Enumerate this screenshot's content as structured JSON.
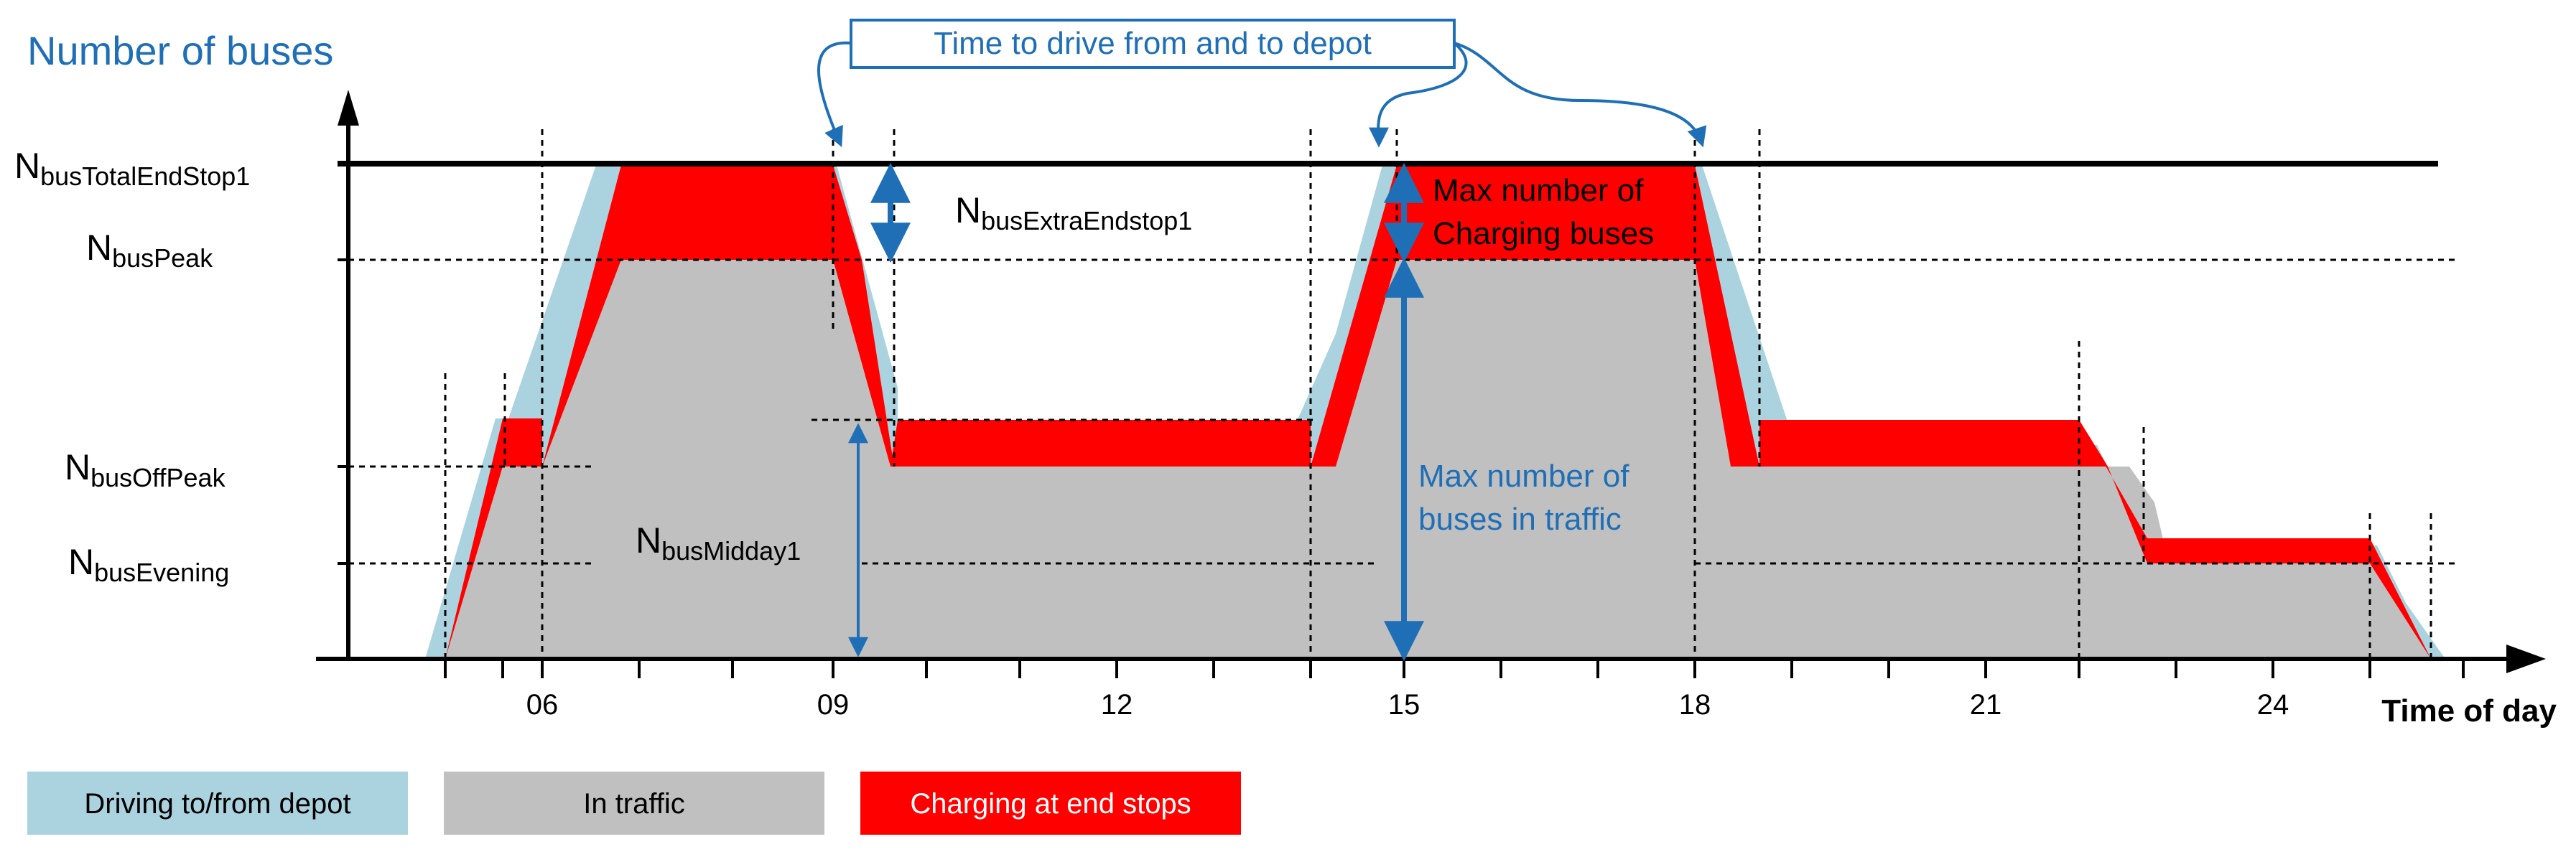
{
  "title": "Number of buses",
  "x_axis_label": "Time of day",
  "x_ticks": [
    "06",
    "09",
    "12",
    "15",
    "18",
    "21",
    "24"
  ],
  "y_levels": {
    "total": {
      "main": "N",
      "sub": "busTotalEndStop1"
    },
    "peak": {
      "main": "N",
      "sub": "busPeak"
    },
    "offpeak": {
      "main": "N",
      "sub": "busOffPeak"
    },
    "evening": {
      "main": "N",
      "sub": "busEvening"
    }
  },
  "annotations": {
    "depot_box": "Time to drive from and to depot",
    "extra_endstop": {
      "main": "N",
      "sub": "busExtraEndstop1"
    },
    "midday": {
      "main": "N",
      "sub": "busMidday1"
    },
    "max_charging_line1": "Max number of",
    "max_charging_line2": "Charging buses",
    "max_traffic_line1": "Max number of",
    "max_traffic_line2": "buses in traffic"
  },
  "legend": [
    {
      "label": "Driving to/from depot",
      "color": "#aad3df"
    },
    {
      "label": "In traffic",
      "color": "#c0c0c0"
    },
    {
      "label": "Charging at end stops",
      "color": "#ff0000"
    }
  ],
  "colors": {
    "depot": "#aad3df",
    "traffic": "#c0c0c0",
    "charging": "#ff0000",
    "arrow_blue": "#1f6fb7",
    "annotation_text_blue": "#1f6fb7"
  }
}
